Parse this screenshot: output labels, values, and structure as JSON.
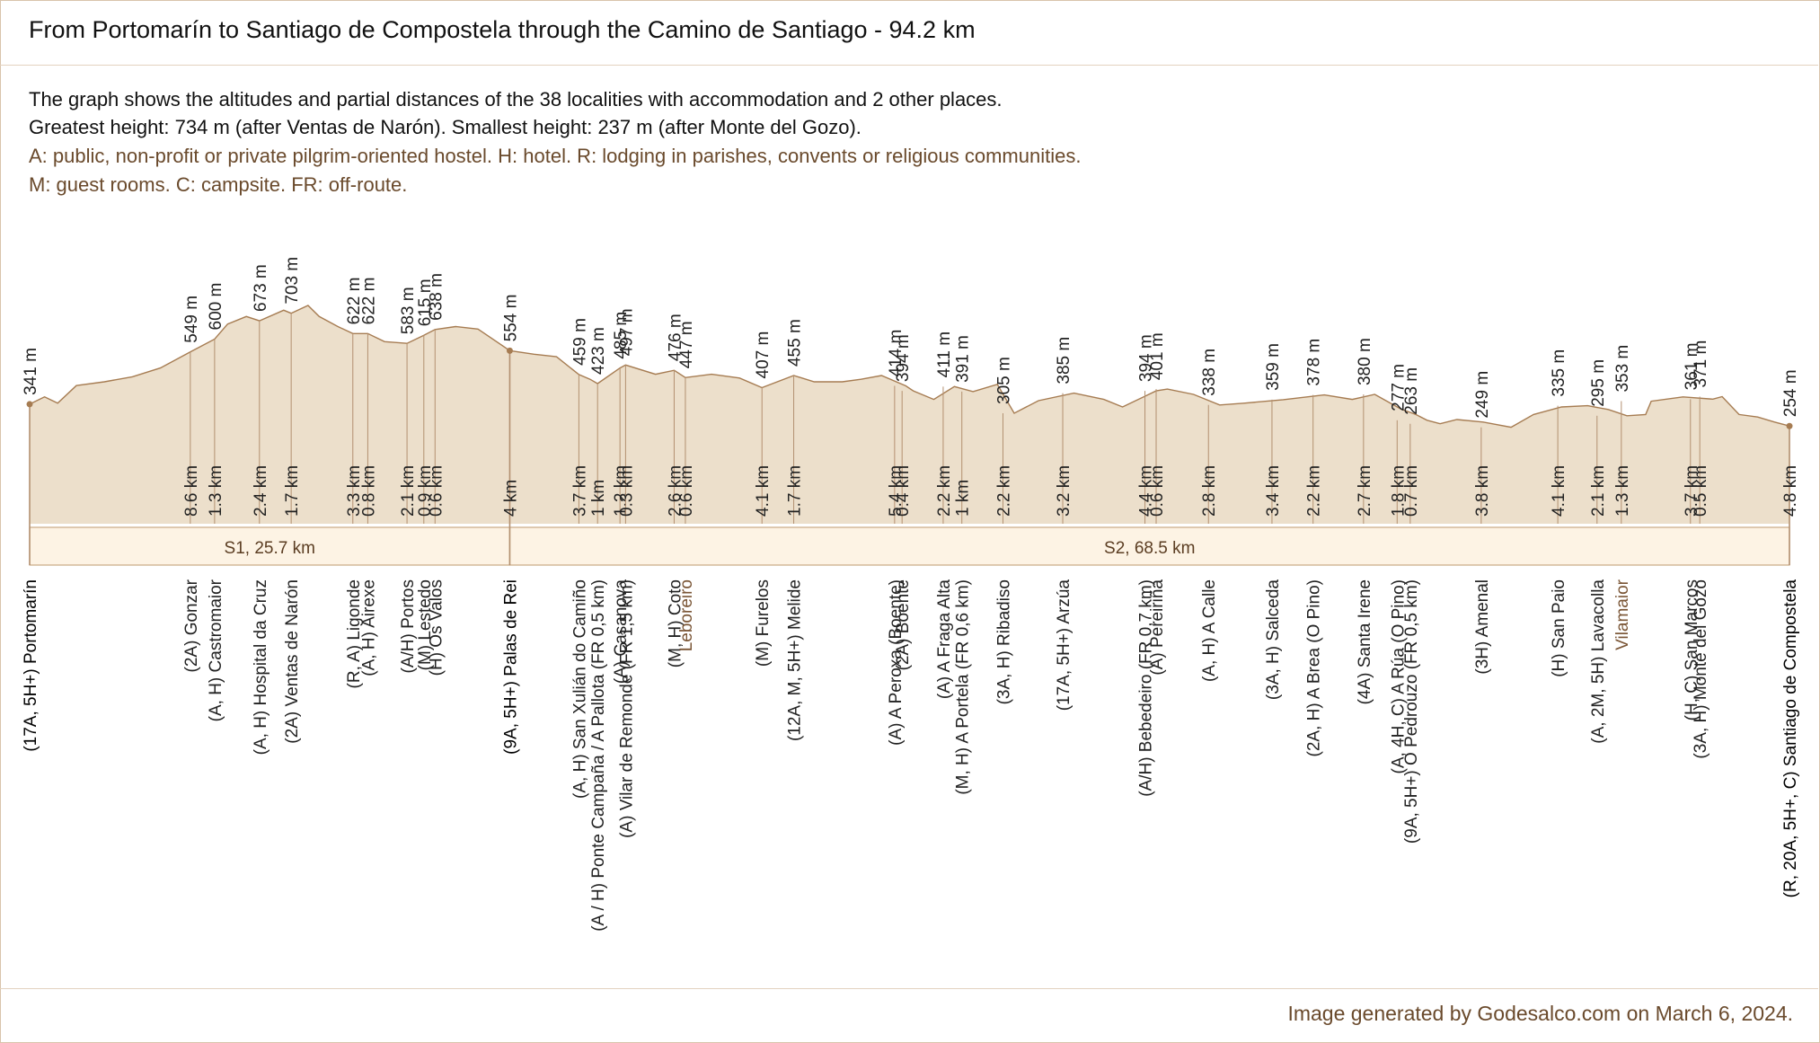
{
  "title": "From Portomarín to Santiago de Compostela through the Camino de Santiago - 94.2 km",
  "description": [
    "The graph shows the altitudes and partial distances of the 38 localities with accommodation and 2 other places.",
    "Greatest height: 734 m (after Ventas de Narón).  Smallest height: 237 m (after Monte del Gozo)."
  ],
  "legend_lines": [
    "A: public, non-profit or private pilgrim-oriented hostel. H: hotel. R: lodging in parishes, convents or religious communities.",
    "M: guest rooms. C: campsite. FR: off-route."
  ],
  "footer": "Image generated by Godesalco.com on March 6, 2024.",
  "colors": {
    "fill": "#ecdfcb",
    "line": "#a67c52",
    "marker": "#b39070",
    "stage_fill": "#fdf3e4",
    "stage_border": "#c9a983",
    "brown_text": "#7a5535"
  },
  "chart_data": {
    "type": "area",
    "title": "From Portomarín to Santiago de Compostela through the Camino de Santiago - 94.2 km",
    "xlabel": "",
    "ylabel": "",
    "total_km": 94.2,
    "max_altitude": 734,
    "min_altitude": 237,
    "stages": [
      {
        "label": "S1, 25.7 km",
        "start_km": 0,
        "end_km": 25.7
      },
      {
        "label": "S2, 68.5 km",
        "start_km": 25.7,
        "end_km": 94.2
      }
    ],
    "profile": [
      [
        0,
        341
      ],
      [
        0.8,
        370
      ],
      [
        1.5,
        345
      ],
      [
        2.5,
        415
      ],
      [
        4,
        430
      ],
      [
        5.5,
        450
      ],
      [
        7,
        485
      ],
      [
        8.6,
        549
      ],
      [
        9.9,
        600
      ],
      [
        10.6,
        660
      ],
      [
        11.6,
        690
      ],
      [
        12.3,
        673
      ],
      [
        13.6,
        715
      ],
      [
        14,
        703
      ],
      [
        14.9,
        734
      ],
      [
        15.5,
        690
      ],
      [
        16.5,
        650
      ],
      [
        17.3,
        622
      ],
      [
        18.1,
        622
      ],
      [
        19,
        590
      ],
      [
        20.2,
        583
      ],
      [
        21.1,
        615
      ],
      [
        21.7,
        638
      ],
      [
        22.8,
        650
      ],
      [
        24,
        640
      ],
      [
        25.7,
        554
      ],
      [
        27,
        540
      ],
      [
        28.2,
        530
      ],
      [
        29.4,
        459
      ],
      [
        30,
        440
      ],
      [
        30.4,
        423
      ],
      [
        31.6,
        485
      ],
      [
        31.9,
        497
      ],
      [
        33.5,
        460
      ],
      [
        34.5,
        476
      ],
      [
        35.1,
        447
      ],
      [
        36.5,
        460
      ],
      [
        38,
        445
      ],
      [
        39.2,
        407
      ],
      [
        40.9,
        455
      ],
      [
        42,
        430
      ],
      [
        43.5,
        430
      ],
      [
        44.5,
        440
      ],
      [
        45.6,
        455
      ],
      [
        46.9,
        414
      ],
      [
        47.3,
        394
      ],
      [
        48.4,
        360
      ],
      [
        49.5,
        411
      ],
      [
        50.5,
        391
      ],
      [
        51.8,
        420
      ],
      [
        52.7,
        305
      ],
      [
        54,
        355
      ],
      [
        55.9,
        385
      ],
      [
        57.5,
        360
      ],
      [
        58.5,
        330
      ],
      [
        60.3,
        394
      ],
      [
        60.9,
        401
      ],
      [
        62.3,
        380
      ],
      [
        63.7,
        338
      ],
      [
        65,
        345
      ],
      [
        67.1,
        359
      ],
      [
        69.3,
        378
      ],
      [
        70.8,
        360
      ],
      [
        72,
        380
      ],
      [
        73.4,
        322
      ],
      [
        74.2,
        300
      ],
      [
        74.8,
        277
      ],
      [
        75.5,
        263
      ],
      [
        76.4,
        280
      ],
      [
        77.8,
        270
      ],
      [
        79.3,
        249
      ],
      [
        80.5,
        300
      ],
      [
        82,
        330
      ],
      [
        83.4,
        335
      ],
      [
        84.5,
        320
      ],
      [
        85.5,
        295
      ],
      [
        86.5,
        300
      ],
      [
        86.8,
        353
      ],
      [
        88.5,
        370
      ],
      [
        90.1,
        361
      ],
      [
        90.6,
        371
      ],
      [
        91.5,
        300
      ],
      [
        92.5,
        290
      ],
      [
        93.4,
        270
      ],
      [
        94.2,
        254
      ]
    ],
    "places": [
      {
        "km": 0,
        "alt": 341,
        "alt_label": "341 m",
        "dist_label": "",
        "lines": [
          "(17A, 5H+) Portomarín"
        ],
        "stage": true
      },
      {
        "km": 8.6,
        "alt": 549,
        "alt_label": "549 m",
        "dist_label": "8.6 km",
        "lines": [
          "(2A) Gonzar"
        ]
      },
      {
        "km": 9.9,
        "alt": 600,
        "alt_label": "600 m",
        "dist_label": "1.3 km",
        "lines": [
          "(A, H) Castromaior"
        ]
      },
      {
        "km": 12.3,
        "alt": 673,
        "alt_label": "673 m",
        "dist_label": "2.4 km",
        "lines": [
          "(A, H) Hospital da Cruz"
        ]
      },
      {
        "km": 14.0,
        "alt": 703,
        "alt_label": "703 m",
        "dist_label": "1.7 km",
        "lines": [
          "(2A) Ventas de Narón"
        ]
      },
      {
        "km": 17.3,
        "alt": 622,
        "alt_label": "622 m",
        "dist_label": "3.3 km",
        "lines": [
          "(R, A) Ligonde"
        ]
      },
      {
        "km": 18.1,
        "alt": 622,
        "alt_label": "622 m",
        "dist_label": "0.8 km",
        "lines": [
          "(A, H) Airexe"
        ]
      },
      {
        "km": 20.2,
        "alt": 583,
        "alt_label": "583 m",
        "dist_label": "2.1 km",
        "lines": [
          "(A/H) Portos"
        ]
      },
      {
        "km": 21.1,
        "alt": 615,
        "alt_label": "615 m",
        "dist_label": "0.9 km",
        "lines": [
          "(M) Lestedo"
        ]
      },
      {
        "km": 21.7,
        "alt": 638,
        "alt_label": "638 m",
        "dist_label": "0.6 km",
        "lines": [
          "(H) Os Valos"
        ]
      },
      {
        "km": 25.7,
        "alt": 554,
        "alt_label": "554 m",
        "dist_label": "4 km",
        "lines": [
          "(9A, 5H+) Palas de Rei"
        ],
        "stage": true
      },
      {
        "km": 29.4,
        "alt": 459,
        "alt_label": "459 m",
        "dist_label": "3.7 km",
        "lines": [
          "(A, H) San Xulián do Camiño"
        ]
      },
      {
        "km": 30.4,
        "alt": 423,
        "alt_label": "423 m",
        "dist_label": "1 km",
        "lines": [
          "(A / H) Ponte Campaña / A Pallota (FR 0,5 km)"
        ]
      },
      {
        "km": 31.6,
        "alt": 485,
        "alt_label": "485 m",
        "dist_label": "1.2 km",
        "lines": [
          "(A) Casanova"
        ]
      },
      {
        "km": 31.9,
        "alt": 497,
        "alt_label": "497 m",
        "dist_label": "0.3 km",
        "lines": [
          "(A) Vilar de Remonde (FR 1,5 km)"
        ]
      },
      {
        "km": 34.5,
        "alt": 476,
        "alt_label": "476 m",
        "dist_label": "2.6 km",
        "lines": [
          "(M, H) Coto"
        ]
      },
      {
        "km": 35.1,
        "alt": 447,
        "alt_label": "447 m",
        "dist_label": "0.6 km",
        "lines": [
          "Leboreiro"
        ],
        "brown": true
      },
      {
        "km": 39.2,
        "alt": 407,
        "alt_label": "407 m",
        "dist_label": "4.1 km",
        "lines": [
          "(M) Furelos"
        ]
      },
      {
        "km": 40.9,
        "alt": 455,
        "alt_label": "455 m",
        "dist_label": "1.7 km",
        "lines": [
          "(12A, M, 5H+) Melide"
        ]
      },
      {
        "km": 46.3,
        "alt": 414,
        "alt_label": "414 m",
        "dist_label": "5.4 km",
        "lines": [
          "(A) A Peroxa (Boente)"
        ]
      },
      {
        "km": 46.7,
        "alt": 394,
        "alt_label": "394 m",
        "dist_label": "0.4 km",
        "lines": [
          "(2A) Boente"
        ]
      },
      {
        "km": 48.9,
        "alt": 411,
        "alt_label": "411 m",
        "dist_label": "2.2 km",
        "lines": [
          "(A) A Fraga Alta"
        ]
      },
      {
        "km": 49.9,
        "alt": 391,
        "alt_label": "391 m",
        "dist_label": "1 km",
        "lines": [
          "(M, H) A Portela (FR 0,6 km)"
        ]
      },
      {
        "km": 52.1,
        "alt": 305,
        "alt_label": "305 m",
        "dist_label": "2.2 km",
        "lines": [
          "(3A, H) Ribadiso"
        ]
      },
      {
        "km": 55.3,
        "alt": 385,
        "alt_label": "385 m",
        "dist_label": "3.2 km",
        "lines": [
          "(17A, 5H+) Arzúa"
        ]
      },
      {
        "km": 59.7,
        "alt": 394,
        "alt_label": "394 m",
        "dist_label": "4.4 km",
        "lines": [
          "(A/H) Bebedeiro (FR 0,7 km)"
        ]
      },
      {
        "km": 60.3,
        "alt": 401,
        "alt_label": "401 m",
        "dist_label": "0.6 km",
        "lines": [
          "(A) Pereiriña"
        ]
      },
      {
        "km": 63.1,
        "alt": 338,
        "alt_label": "338 m",
        "dist_label": "2.8 km",
        "lines": [
          "(A, H) A Calle"
        ]
      },
      {
        "km": 66.5,
        "alt": 359,
        "alt_label": "359 m",
        "dist_label": "3.4 km",
        "lines": [
          "(3A, H) Salceda"
        ]
      },
      {
        "km": 68.7,
        "alt": 378,
        "alt_label": "378 m",
        "dist_label": "2.2 km",
        "lines": [
          "(2A, H) A Brea (O Pino)"
        ]
      },
      {
        "km": 71.4,
        "alt": 380,
        "alt_label": "380 m",
        "dist_label": "2.7 km",
        "lines": [
          "(4A) Santa Irene"
        ]
      },
      {
        "km": 73.2,
        "alt": 277,
        "alt_label": "277 m",
        "dist_label": "1.8 km",
        "lines": [
          "(A, 4H, C) A Rúa (O Pino)"
        ]
      },
      {
        "km": 73.9,
        "alt": 263,
        "alt_label": "263 m",
        "dist_label": "0.7 km",
        "lines": [
          "(9A, 5H+) O Pedrouzo (FR 0,5 km)"
        ]
      },
      {
        "km": 77.7,
        "alt": 249,
        "alt_label": "249 m",
        "dist_label": "3.8 km",
        "lines": [
          "(3H) Amenal"
        ]
      },
      {
        "km": 81.8,
        "alt": 335,
        "alt_label": "335 m",
        "dist_label": "4.1 km",
        "lines": [
          "(H) San Paio"
        ]
      },
      {
        "km": 83.9,
        "alt": 295,
        "alt_label": "295 m",
        "dist_label": "2.1 km",
        "lines": [
          "(A, 2M, 5H) Lavacolla"
        ]
      },
      {
        "km": 85.2,
        "alt": 353,
        "alt_label": "353 m",
        "dist_label": "1.3 km",
        "lines": [
          "Vilamaior"
        ],
        "brown": true
      },
      {
        "km": 88.9,
        "alt": 361,
        "alt_label": "361 m",
        "dist_label": "3.7 km",
        "lines": [
          "(H, C) San Marcos"
        ]
      },
      {
        "km": 89.4,
        "alt": 371,
        "alt_label": "371 m",
        "dist_label": "0.5 km",
        "lines": [
          "(3A, H) Monte del Gozo"
        ]
      },
      {
        "km": 94.2,
        "alt": 254,
        "alt_label": "254 m",
        "dist_label": "4.8 km",
        "lines": [
          "(R, 20A, 5H+, C) Santiago de Compostela"
        ],
        "stage": true
      }
    ]
  }
}
